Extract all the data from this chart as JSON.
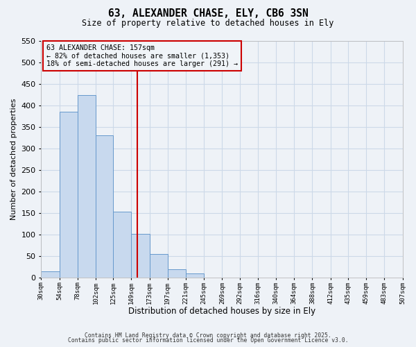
{
  "title": "63, ALEXANDER CHASE, ELY, CB6 3SN",
  "subtitle": "Size of property relative to detached houses in Ely",
  "xlabel": "Distribution of detached houses by size in Ely",
  "ylabel": "Number of detached properties",
  "bar_edges": [
    30,
    54,
    78,
    102,
    125,
    149,
    173,
    197,
    221,
    245,
    269,
    292,
    316,
    340,
    364,
    388,
    412,
    435,
    459,
    483,
    507
  ],
  "bar_heights": [
    15,
    385,
    425,
    330,
    153,
    102,
    55,
    20,
    10,
    0,
    0,
    0,
    0,
    0,
    0,
    0,
    0,
    0,
    0,
    0
  ],
  "bar_color": "#c8d9ee",
  "bar_edge_color": "#6699cc",
  "vline_x": 157,
  "vline_color": "#cc0000",
  "ylim": [
    0,
    550
  ],
  "xlim": [
    30,
    507
  ],
  "annotation_title": "63 ALEXANDER CHASE: 157sqm",
  "annotation_line1": "← 82% of detached houses are smaller (1,353)",
  "annotation_line2": "18% of semi-detached houses are larger (291) →",
  "annotation_box_color": "#cc0000",
  "annotation_box_facecolor": "#f0f4f8",
  "footer1": "Contains HM Land Registry data © Crown copyright and database right 2025.",
  "footer2": "Contains public sector information licensed under the Open Government Licence v3.0.",
  "tick_labels": [
    "30sqm",
    "54sqm",
    "78sqm",
    "102sqm",
    "125sqm",
    "149sqm",
    "173sqm",
    "197sqm",
    "221sqm",
    "245sqm",
    "269sqm",
    "292sqm",
    "316sqm",
    "340sqm",
    "364sqm",
    "388sqm",
    "412sqm",
    "435sqm",
    "459sqm",
    "483sqm",
    "507sqm"
  ],
  "yticks": [
    0,
    50,
    100,
    150,
    200,
    250,
    300,
    350,
    400,
    450,
    500,
    550
  ],
  "grid_color": "#ccd9e8",
  "bg_color": "#eef2f7"
}
